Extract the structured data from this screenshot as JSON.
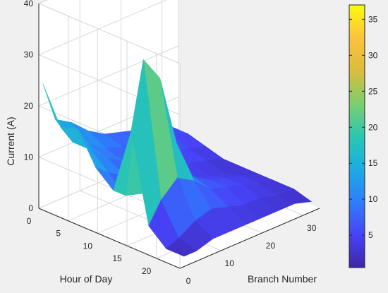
{
  "chart_data": {
    "type": "surface3d",
    "xlabel": "Branch Number",
    "ylabel": "Hour of Day",
    "zlabel": "Current (A)",
    "xlim": [
      0,
      34
    ],
    "ylim": [
      0,
      24
    ],
    "zlim": [
      0,
      40
    ],
    "xticks": [
      0,
      10,
      20,
      30
    ],
    "yticks": [
      0,
      5,
      10,
      15,
      20
    ],
    "zticks": [
      0,
      10,
      20,
      30,
      40
    ],
    "colorbar": {
      "ticks": [
        5,
        10,
        15,
        20,
        25,
        30,
        35
      ],
      "range": [
        0.5,
        37
      ],
      "colormap": [
        "#3e26a8",
        "#4743f7",
        "#2f7efb",
        "#1bace3",
        "#2bc7b1",
        "#7cce6e",
        "#dbbd3c",
        "#fcc23d",
        "#f9fb0e"
      ]
    },
    "grid": true,
    "view": "3d-isometric",
    "branches": [
      1,
      4,
      8,
      12,
      16,
      20,
      24,
      28,
      32
    ],
    "hours": [
      0,
      3,
      6,
      9,
      12,
      15,
      18,
      21,
      24
    ],
    "current_by_hour": [
      [
        24,
        16,
        14,
        11,
        9,
        8,
        7,
        6,
        5
      ],
      [
        17,
        13,
        11,
        9,
        8,
        7,
        7,
        6,
        5
      ],
      [
        18,
        13,
        10,
        8,
        7,
        6,
        6,
        5,
        4
      ],
      [
        12,
        10,
        8,
        7,
        6,
        5,
        5,
        4,
        3
      ],
      [
        9,
        7,
        6,
        5,
        4,
        4,
        4,
        3,
        3
      ],
      [
        22,
        35,
        30,
        16,
        8,
        6,
        5,
        4,
        3
      ],
      [
        5,
        9,
        12,
        10,
        7,
        6,
        5,
        4,
        3
      ],
      [
        2,
        3,
        5,
        6,
        5,
        4,
        4,
        3,
        3
      ],
      [
        2,
        2,
        3,
        3,
        3,
        3,
        3,
        3,
        2
      ]
    ]
  }
}
